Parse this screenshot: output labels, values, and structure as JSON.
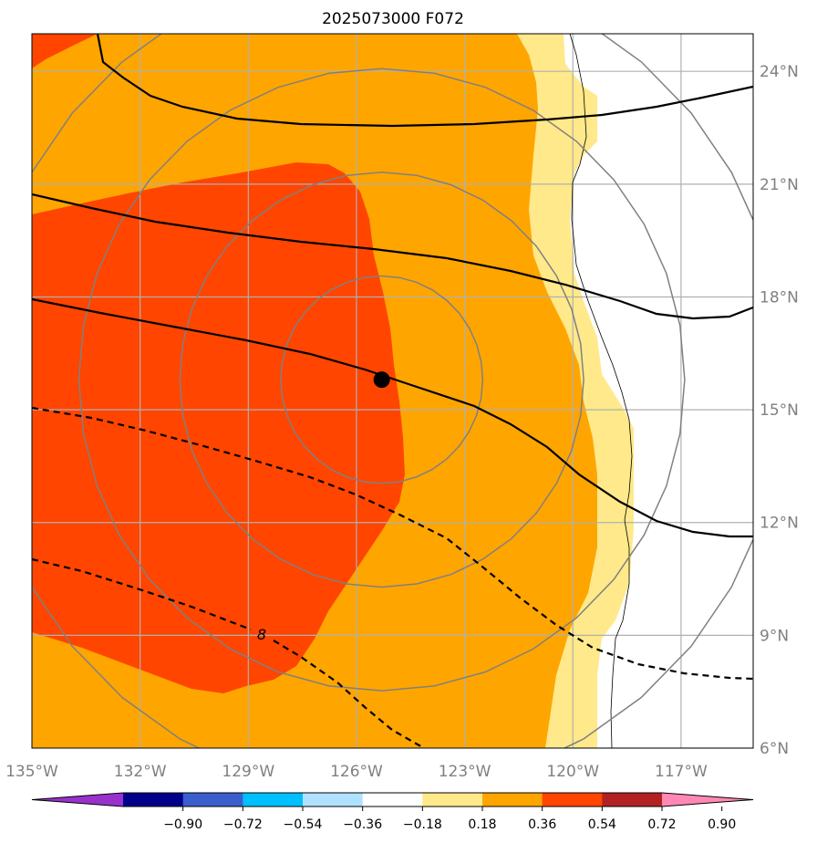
{
  "title": "2025073000 F072",
  "map": {
    "lon_range": [
      -135.0,
      -115.0
    ],
    "lat_range": [
      6.0,
      25.0
    ],
    "lon_ticks": [
      {
        "value": -135,
        "label": "135°W"
      },
      {
        "value": -132,
        "label": "132°W"
      },
      {
        "value": -129,
        "label": "129°W"
      },
      {
        "value": -126,
        "label": "126°W"
      },
      {
        "value": -123,
        "label": "123°W"
      },
      {
        "value": -120,
        "label": "120°W"
      },
      {
        "value": -117,
        "label": "117°W"
      }
    ],
    "lat_ticks": [
      {
        "value": 6,
        "label": "6°N"
      },
      {
        "value": 9,
        "label": "9°N"
      },
      {
        "value": 12,
        "label": "12°N"
      },
      {
        "value": 15,
        "label": "15°N"
      },
      {
        "value": 18,
        "label": "18°N"
      },
      {
        "value": 21,
        "label": "21°N"
      },
      {
        "value": 24,
        "label": "24°N"
      }
    ],
    "storm_center": {
      "lon": -125.3,
      "lat": 15.8
    },
    "range_rings_deg": [
      2.8,
      5.6,
      8.4,
      11.2
    ],
    "contour_label": "8",
    "fill_colors": {
      "light_yellow": "#ffe98a",
      "orange": "#ffa500",
      "red_orange": "#ff4500"
    }
  },
  "colorbar": {
    "colors": [
      "#9932cc",
      "#00008b",
      "#3a5fcd",
      "#00bfff",
      "#b0e2ff",
      "#ffffff",
      "#ffe98a",
      "#ffa500",
      "#ff4500",
      "#b22222",
      "#ff88b4"
    ],
    "tick_labels": [
      "−0.90",
      "−0.72",
      "−0.54",
      "−0.36",
      "−0.18",
      "0.18",
      "0.36",
      "0.54",
      "0.72",
      "0.90"
    ]
  }
}
